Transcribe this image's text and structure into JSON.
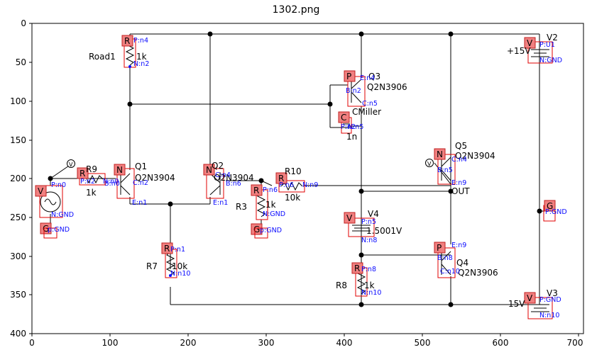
{
  "title": "1302.png",
  "axes": {
    "x_ticks": [
      "0",
      "100",
      "200",
      "300",
      "400",
      "500",
      "600",
      "700"
    ],
    "y_ticks": [
      "0",
      "50",
      "100",
      "150",
      "200",
      "250",
      "300",
      "350",
      "400"
    ]
  },
  "components": {
    "road1": {
      "name": "Road1",
      "value": "1k"
    },
    "q1": {
      "name": "Q1",
      "type": "Q2N3904"
    },
    "q2": {
      "name": "Q2",
      "type": "Q2N3904"
    },
    "r9": {
      "name": "R9",
      "value": "1k"
    },
    "r10": {
      "name": "R10",
      "value": "10k"
    },
    "r3": {
      "name": "R3",
      "value": "1k"
    },
    "r7": {
      "name": "R7",
      "value": "10k"
    },
    "r8": {
      "name": "R8",
      "value": "1k"
    },
    "q3": {
      "name": "Q3",
      "type": "Q2N3906"
    },
    "cmiller": {
      "name": "CMiller",
      "value": "1n"
    },
    "v4": {
      "name": "V4",
      "value": "1.5001V"
    },
    "q5": {
      "name": "Q5",
      "type": "Q2N3904"
    },
    "q4": {
      "name": "Q4",
      "type": "Q2N3906"
    },
    "v2": {
      "name": "V2",
      "value": "+15V"
    },
    "v3": {
      "name": "V3",
      "value": "15V"
    },
    "out": {
      "name": "OUT"
    }
  },
  "badge_letters": {
    "resistor": "R",
    "npn": "N",
    "pnp": "P",
    "cap": "C",
    "vsrc": "V",
    "gnd": "G"
  },
  "pins": {
    "road1_p": "P:n4",
    "road1_n": "N:n2",
    "q1_c": "C:n2",
    "q1_b": "B:n0",
    "q1_e": "E:n1",
    "q2_c": "C:n4",
    "q2_b": "B:n6",
    "q2_e": "E:n1",
    "r9_p": "P:n2",
    "r9_n": "N:n0",
    "r10_p": "P:n6",
    "r10_n": "N:n9",
    "r3_p": "P:n6",
    "r3_n": "N:GND",
    "r7_p": "P:n1",
    "r7_n": "N:n10",
    "r8_p": "P:n8",
    "r8_n": "N:n10",
    "vin_p": "P:n0",
    "vin_n": "N:GND",
    "gnd1": "p:GND",
    "gnd2": "p:GND",
    "q3_e": "E:n4",
    "q3_b": "B:n2",
    "q3_c": "C:n5",
    "cm_p": "P:n2",
    "cm_n": "N:n5",
    "v4_p": "P:n5",
    "v4_n": "N:n8",
    "q5_c": "C:n4",
    "q5_b": "B:n5",
    "q5_e": "E:n9",
    "q4_e": "E:n9",
    "q4_b": "B:n8",
    "q4_c": "C:n10",
    "v2_p": "P:U1",
    "v2_n": "N:GND",
    "v3_p": "P:GND",
    "v3_n": "N:n10",
    "gnd3": "P:GND"
  },
  "colors": {
    "wire": "#000000",
    "badge_fill": "#f08080",
    "badge_stroke": "#c02020",
    "pin_text": "#0a0aff",
    "box": "#e00000",
    "node": "#000000"
  }
}
